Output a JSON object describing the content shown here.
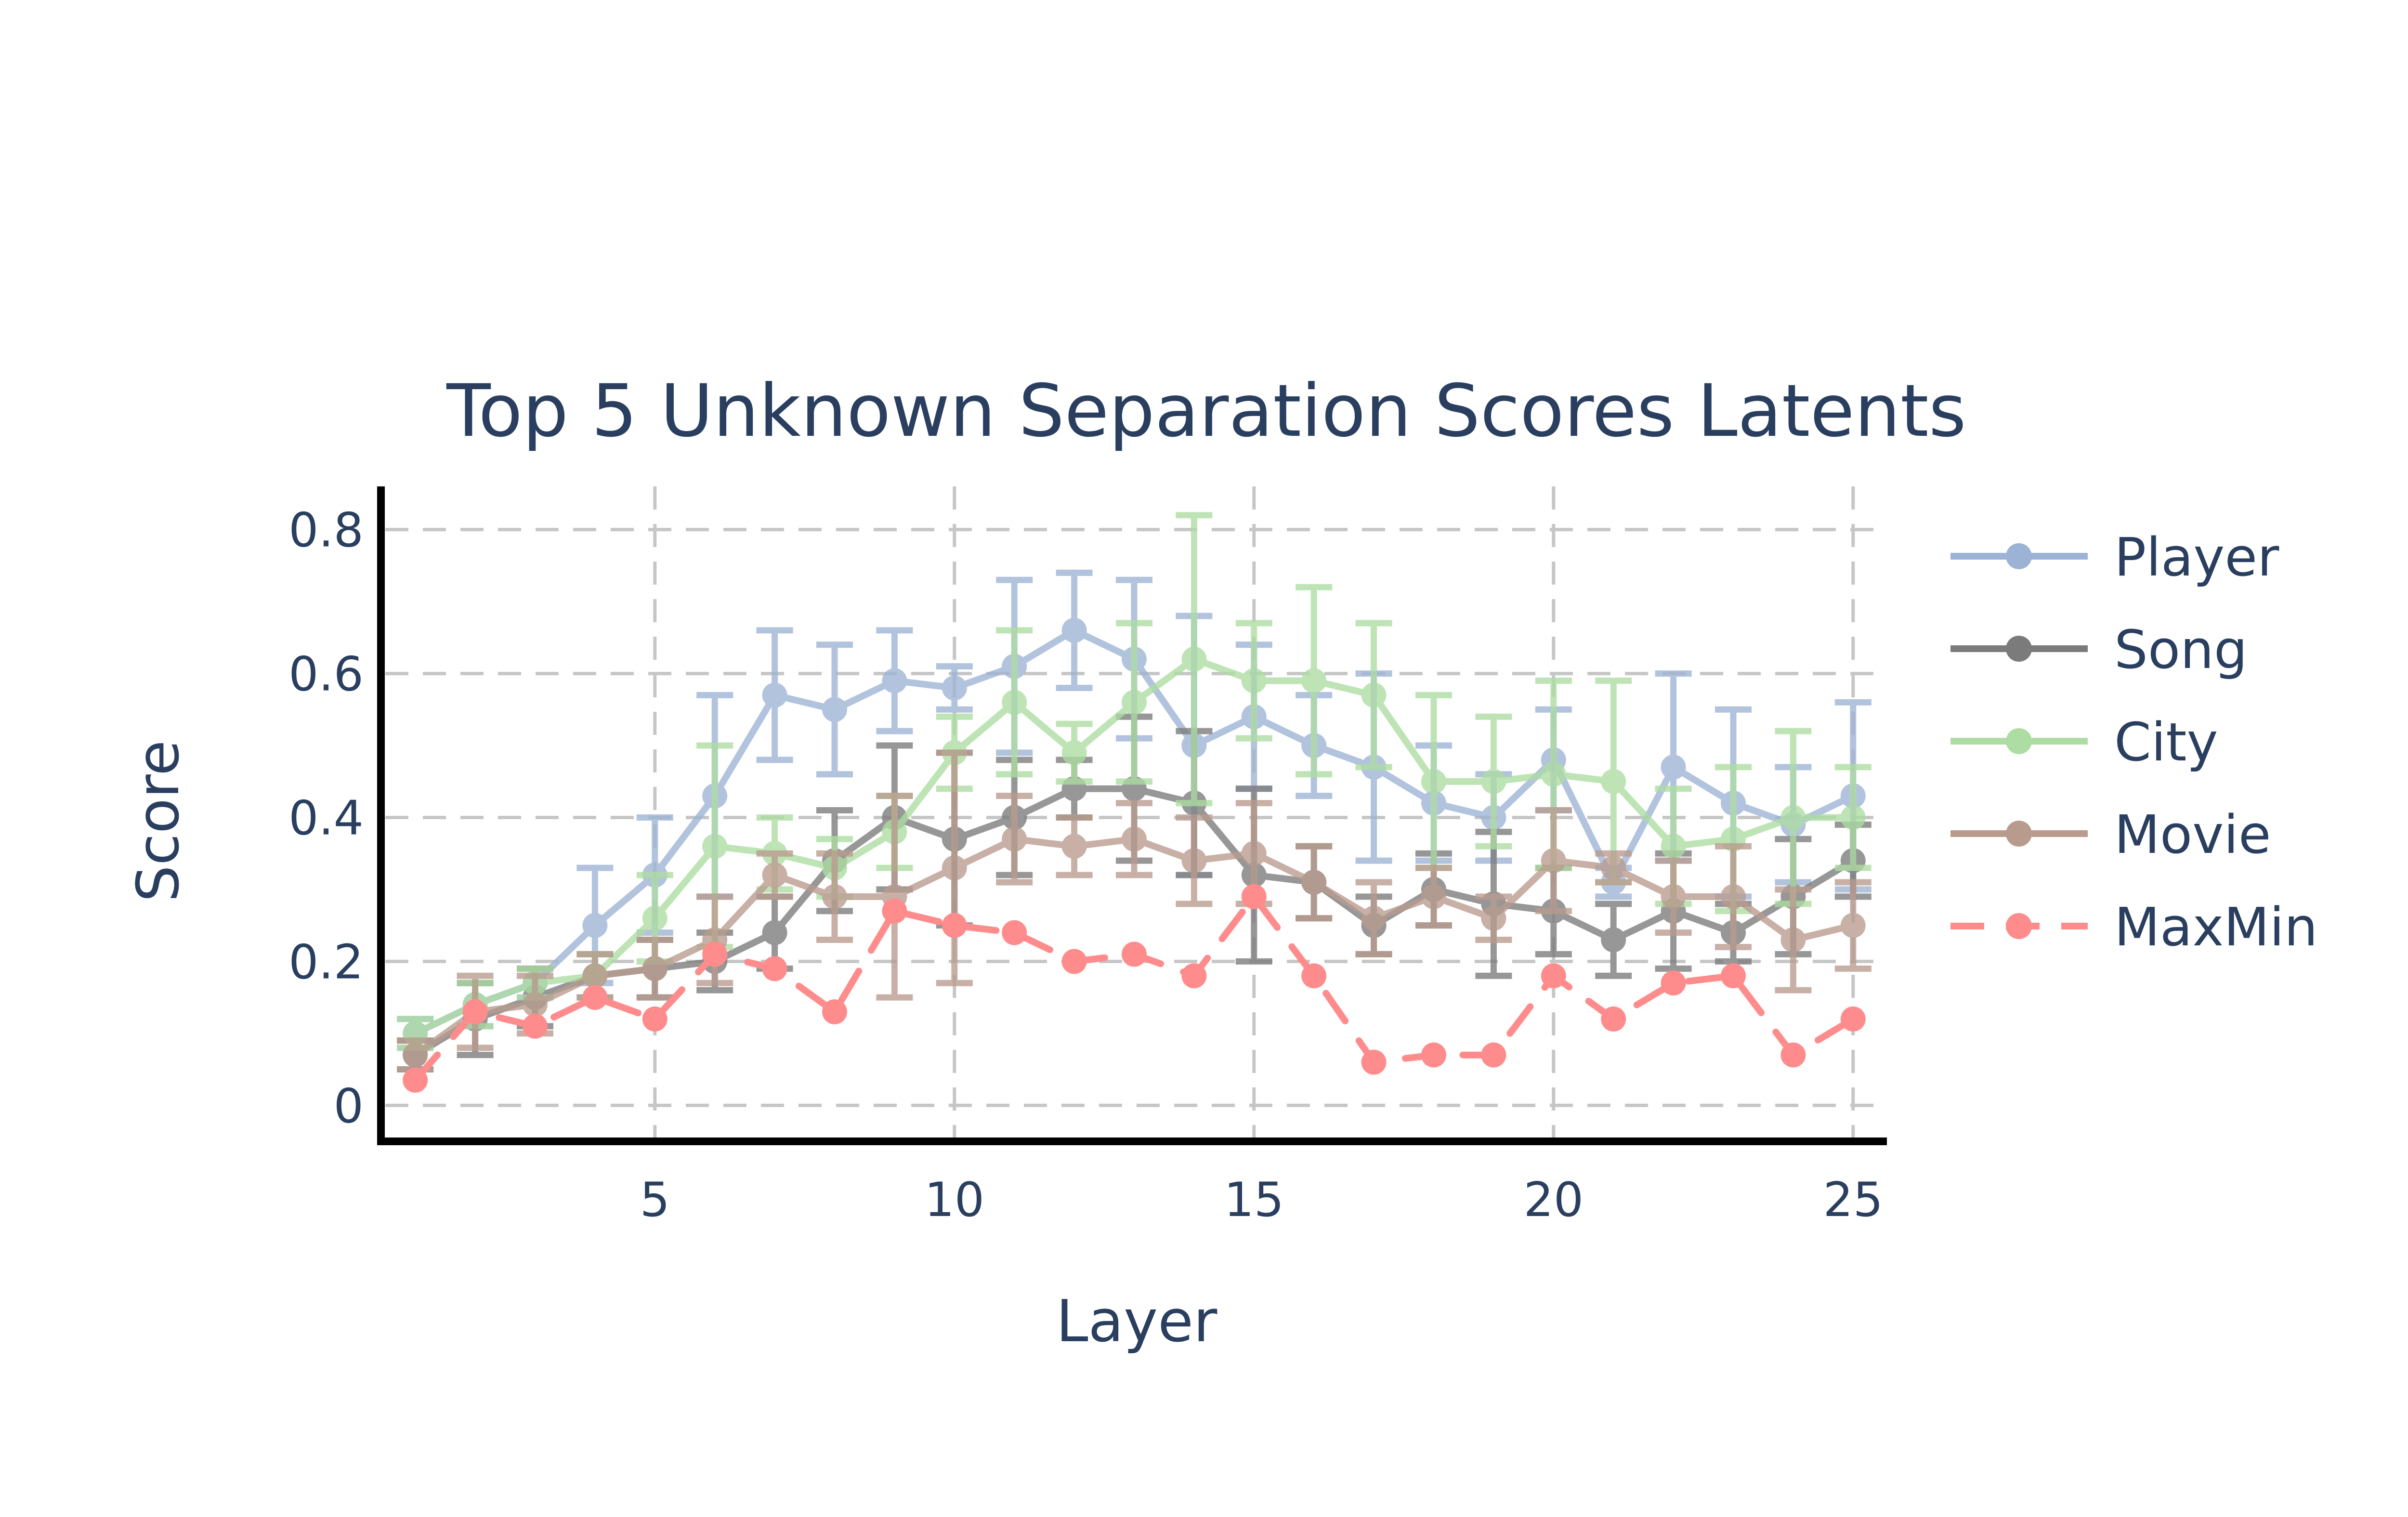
{
  "chart_data": {
    "type": "line",
    "title": "Top 5 Unknown Separation Scores Latents",
    "xlabel": "Layer",
    "ylabel": "Score",
    "xlim": [
      0.5,
      25.5
    ],
    "ylim": [
      -0.05,
      0.86
    ],
    "x_ticks": [
      5,
      10,
      15,
      20,
      25
    ],
    "y_ticks": [
      0,
      0.2,
      0.4,
      0.6,
      0.8
    ],
    "y_tick_labels": [
      "0",
      "0.2",
      "0.4",
      "0.6",
      "0.8"
    ],
    "grid": true,
    "legend_position": "right",
    "x": [
      1,
      2,
      3,
      4,
      5,
      6,
      7,
      8,
      9,
      10,
      11,
      12,
      13,
      14,
      15,
      16,
      17,
      18,
      19,
      20,
      21,
      22,
      23,
      24,
      25
    ],
    "series": [
      {
        "name": "Player",
        "color": "#9db3d5",
        "dash": "solid",
        "values": [
          0.1,
          0.14,
          0.17,
          0.25,
          0.32,
          0.43,
          0.57,
          0.55,
          0.59,
          0.58,
          0.61,
          0.66,
          0.62,
          0.5,
          0.54,
          0.5,
          0.47,
          0.42,
          0.4,
          0.48,
          0.31,
          0.47,
          0.42,
          0.39,
          0.43
        ],
        "errors": [
          0.02,
          0.03,
          0.02,
          0.08,
          0.08,
          0.14,
          0.09,
          0.09,
          0.07,
          0.03,
          0.12,
          0.08,
          0.11,
          0.18,
          0.1,
          0.07,
          0.13,
          0.08,
          0.06,
          0.07,
          0.02,
          0.13,
          0.13,
          0.08,
          0.13
        ]
      },
      {
        "name": "Song",
        "color": "#7b7b7b",
        "dash": "solid",
        "values": [
          0.07,
          0.12,
          0.15,
          0.18,
          0.19,
          0.2,
          0.24,
          0.34,
          0.4,
          0.37,
          0.4,
          0.44,
          0.44,
          0.42,
          0.32,
          0.31,
          0.25,
          0.3,
          0.28,
          0.27,
          0.23,
          0.27,
          0.24,
          0.29,
          0.34
        ],
        "errors": [
          0.02,
          0.05,
          0.04,
          0.03,
          0.04,
          0.04,
          0.05,
          0.07,
          0.1,
          0.12,
          0.08,
          0.04,
          0.1,
          0.1,
          0.12,
          0.05,
          0.04,
          0.05,
          0.1,
          0.06,
          0.05,
          0.08,
          0.04,
          0.08,
          0.05
        ]
      },
      {
        "name": "City",
        "color": "#addda2",
        "dash": "solid",
        "values": [
          0.1,
          0.14,
          0.17,
          0.18,
          0.26,
          0.36,
          0.35,
          0.33,
          0.38,
          0.49,
          0.56,
          0.49,
          0.56,
          0.62,
          0.59,
          0.59,
          0.57,
          0.45,
          0.45,
          0.46,
          0.45,
          0.36,
          0.37,
          0.4,
          0.4
        ],
        "errors": [
          0.02,
          0.03,
          0.02,
          0.03,
          0.06,
          0.14,
          0.05,
          0.04,
          0.05,
          0.05,
          0.1,
          0.04,
          0.11,
          0.2,
          0.08,
          0.13,
          0.1,
          0.12,
          0.09,
          0.13,
          0.14,
          0.08,
          0.1,
          0.12,
          0.07
        ]
      },
      {
        "name": "Movie",
        "color": "#b99b8e",
        "dash": "solid",
        "values": [
          0.07,
          0.13,
          0.14,
          0.18,
          0.19,
          0.23,
          0.32,
          0.29,
          0.29,
          0.33,
          0.37,
          0.36,
          0.37,
          0.34,
          0.35,
          0.31,
          0.26,
          0.29,
          0.26,
          0.34,
          0.33,
          0.29,
          0.29,
          0.23,
          0.25
        ],
        "errors": [
          0.02,
          0.05,
          0.04,
          0.03,
          0.04,
          0.06,
          0.03,
          0.06,
          0.14,
          0.16,
          0.06,
          0.04,
          0.05,
          0.06,
          0.07,
          0.05,
          0.05,
          0.04,
          0.03,
          0.07,
          0.02,
          0.05,
          0.07,
          0.07,
          0.06
        ]
      },
      {
        "name": "MaxMin",
        "color": "#ff8c8c",
        "dash": "dashed",
        "values": [
          0.035,
          0.13,
          0.11,
          0.15,
          0.12,
          0.21,
          0.19,
          0.13,
          0.27,
          0.25,
          0.24,
          0.2,
          0.21,
          0.18,
          0.29,
          0.18,
          0.06,
          0.07,
          0.07,
          0.18,
          0.12,
          0.17,
          0.18,
          0.07,
          0.12
        ]
      }
    ]
  }
}
